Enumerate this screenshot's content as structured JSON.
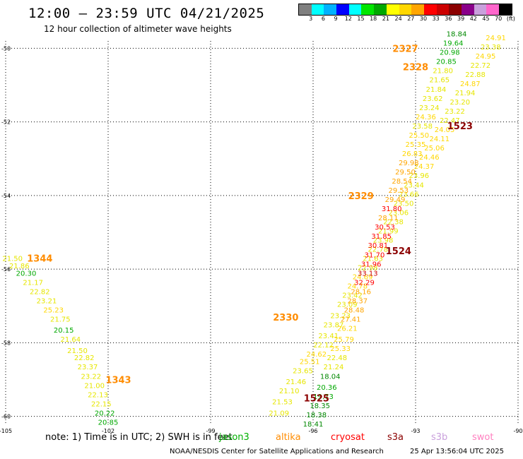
{
  "header": {
    "title": "12:00 – 23:59 UTC 04/21/2025",
    "subtitle": "12 hour collection of altimeter wave heights"
  },
  "colorbar": {
    "colors": [
      "#7f7f7f",
      "#00ffff",
      "#00b2ff",
      "#0000ff",
      "#00ffff",
      "#00e600",
      "#00a800",
      "#ffff00",
      "#ffd700",
      "#ffa500",
      "#ff0000",
      "#cc0000",
      "#8b0000",
      "#8a008a",
      "#c9a0dc",
      "#ff66cc",
      "#000000"
    ],
    "labels": [
      "3",
      "6",
      "9",
      "12",
      "15",
      "18",
      "21",
      "24",
      "27",
      "30",
      "33",
      "36",
      "39",
      "42",
      "45",
      "70",
      "(ft)"
    ]
  },
  "map": {
    "lon_ticks": [
      "-105",
      "-102",
      "-99",
      "-96",
      "-93",
      "-90"
    ],
    "lat_ticks": [
      "-50",
      "-52",
      "-54",
      "-56",
      "-58",
      "-60"
    ]
  },
  "chart_data": {
    "type": "scatter",
    "title": "12 hour collection of altimeter wave heights",
    "units": "ft",
    "xlim": [
      -105,
      -90
    ],
    "ylim": [
      -60.2,
      -49.8
    ],
    "tracks": [
      {
        "id": "1343",
        "points": [
          [
            -104.8,
            -55.7,
            21.5
          ],
          [
            -104.6,
            -55.9,
            21.86
          ],
          [
            -104.4,
            -56.1,
            20.3
          ],
          [
            -104.2,
            -56.35,
            21.17
          ],
          [
            -104.0,
            -56.6,
            22.82
          ],
          [
            -103.8,
            -56.85,
            23.21
          ],
          [
            -103.6,
            -57.1,
            25.23
          ],
          [
            -103.4,
            -57.35,
            21.75
          ],
          [
            -103.3,
            -57.65,
            20.15
          ],
          [
            -103.1,
            -57.9,
            21.64
          ],
          [
            -102.9,
            -58.2,
            21.5
          ],
          [
            -102.7,
            -58.4,
            22.82
          ],
          [
            -102.6,
            -58.65,
            23.37
          ],
          [
            -102.5,
            -58.9,
            23.22
          ],
          [
            -102.4,
            -59.15,
            21.0
          ],
          [
            -102.3,
            -59.4,
            22.13
          ],
          [
            -102.2,
            -59.65,
            22.15
          ],
          [
            -102.1,
            -59.9,
            20.22
          ],
          [
            -102.0,
            -60.15,
            20.85
          ]
        ]
      },
      {
        "id": "2330",
        "points": [
          [
            -97.0,
            -59.9,
            21.09
          ],
          [
            -96.9,
            -59.6,
            21.53
          ],
          [
            -96.7,
            -59.3,
            21.1
          ],
          [
            -96.5,
            -59.05,
            21.46
          ],
          [
            -96.3,
            -58.75,
            23.65
          ],
          [
            -96.1,
            -58.5,
            25.51
          ],
          [
            -95.9,
            -58.3,
            24.62
          ],
          [
            -95.7,
            -58.05,
            22.12
          ],
          [
            -95.55,
            -57.8,
            23.41
          ],
          [
            -95.4,
            -57.5,
            23.87
          ],
          [
            -95.2,
            -57.25,
            23.23
          ],
          [
            -95.0,
            -56.95,
            23.09
          ],
          [
            -94.85,
            -56.7,
            23.42
          ],
          [
            -94.7,
            -56.45,
            24.78
          ],
          [
            -94.55,
            -56.2,
            24.69
          ],
          [
            -94.4,
            -55.95,
            22.98
          ],
          [
            -94.25,
            -55.7,
            21.63
          ],
          [
            -94.1,
            -55.45,
            22.78
          ],
          [
            -93.95,
            -55.2,
            23.98
          ],
          [
            -93.8,
            -54.95,
            21.99
          ],
          [
            -93.65,
            -54.7,
            22.38
          ],
          [
            -93.5,
            -54.45,
            23.06
          ],
          [
            -93.35,
            -54.2,
            23.5
          ],
          [
            -93.2,
            -53.95,
            23.66
          ],
          [
            -93.05,
            -53.7,
            23.44
          ],
          [
            -92.9,
            -53.45,
            23.96
          ],
          [
            -92.75,
            -53.2,
            24.37
          ],
          [
            -92.6,
            -52.95,
            24.46
          ],
          [
            -92.45,
            -52.7,
            25.06
          ],
          [
            -92.3,
            -52.45,
            24.11
          ],
          [
            -92.15,
            -52.2,
            24.05
          ],
          [
            -92.0,
            -51.95,
            22.47
          ],
          [
            -91.85,
            -51.7,
            23.22
          ],
          [
            -91.7,
            -51.45,
            23.2
          ],
          [
            -91.55,
            -51.2,
            21.94
          ],
          [
            -91.4,
            -50.95,
            24.87
          ],
          [
            -91.25,
            -50.7,
            22.88
          ],
          [
            -91.1,
            -50.45,
            22.72
          ],
          [
            -90.95,
            -50.2,
            24.95
          ],
          [
            -90.8,
            -49.95,
            23.38
          ],
          [
            -90.65,
            -49.7,
            24.91
          ]
        ]
      },
      {
        "id": "1525",
        "points": [
          [
            -96.0,
            -60.2,
            18.41
          ],
          [
            -95.9,
            -59.95,
            18.38
          ],
          [
            -95.8,
            -59.7,
            18.35
          ],
          [
            -95.7,
            -59.45,
            19.73
          ],
          [
            -95.6,
            -59.2,
            20.36
          ],
          [
            -95.5,
            -58.9,
            18.04
          ],
          [
            -95.4,
            -58.65,
            21.24
          ],
          [
            -95.3,
            -58.4,
            22.48
          ],
          [
            -95.2,
            -58.15,
            25.33
          ],
          [
            -95.1,
            -57.9,
            25.79
          ],
          [
            -95.0,
            -57.6,
            26.21
          ],
          [
            -94.9,
            -57.35,
            27.41
          ],
          [
            -94.8,
            -57.1,
            28.48
          ],
          [
            -94.7,
            -56.85,
            28.37
          ],
          [
            -94.6,
            -56.6,
            28.16
          ],
          [
            -94.5,
            -56.35,
            32.29
          ],
          [
            -94.4,
            -56.1,
            33.13
          ],
          [
            -94.3,
            -55.85,
            31.96
          ],
          [
            -94.2,
            -55.6,
            31.7
          ],
          [
            -94.1,
            -55.35,
            30.81
          ],
          [
            -94.0,
            -55.1,
            31.85
          ],
          [
            -93.9,
            -54.85,
            30.53
          ],
          [
            -93.8,
            -54.6,
            28.11
          ],
          [
            -93.7,
            -54.35,
            31.8
          ],
          [
            -93.6,
            -54.1,
            29.49
          ],
          [
            -93.5,
            -53.85,
            29.53
          ],
          [
            -93.4,
            -53.6,
            28.54
          ],
          [
            -93.3,
            -53.35,
            29.5
          ],
          [
            -93.2,
            -53.1,
            29.98
          ],
          [
            -93.1,
            -52.85,
            26.83
          ],
          [
            -93.0,
            -52.6,
            25.35
          ],
          [
            -92.9,
            -52.35,
            25.5
          ],
          [
            -92.8,
            -52.1,
            23.58
          ],
          [
            -92.7,
            -51.85,
            24.36
          ],
          [
            -92.6,
            -51.6,
            23.24
          ],
          [
            -92.5,
            -51.35,
            23.62
          ],
          [
            -92.4,
            -51.1,
            21.84
          ],
          [
            -92.3,
            -50.85,
            21.65
          ],
          [
            -92.2,
            -50.6,
            21.8
          ],
          [
            -92.1,
            -50.35,
            20.85
          ],
          [
            -92.0,
            -50.1,
            20.98
          ],
          [
            -91.9,
            -49.85,
            19.64
          ],
          [
            -91.8,
            -49.6,
            18.84
          ]
        ]
      }
    ],
    "track_labels": [
      {
        "text": "1344",
        "lon": -104.0,
        "lat": -55.7,
        "color": "#ff8c00"
      },
      {
        "text": "1343",
        "lon": -101.7,
        "lat": -59.0,
        "color": "#ff8c00"
      },
      {
        "text": "2327",
        "lon": -93.3,
        "lat": -50.0,
        "color": "#ff8c00"
      },
      {
        "text": "2328",
        "lon": -93.0,
        "lat": -50.5,
        "color": "#ff8c00"
      },
      {
        "text": "2329",
        "lon": -94.6,
        "lat": -54.0,
        "color": "#ff8c00"
      },
      {
        "text": "2330",
        "lon": -96.8,
        "lat": -57.3,
        "color": "#ff8c00"
      },
      {
        "text": "1523",
        "lon": -91.7,
        "lat": -52.1,
        "color": "#8b0000"
      },
      {
        "text": "1524",
        "lon": -93.5,
        "lat": -55.5,
        "color": "#8b0000"
      },
      {
        "text": "1525",
        "lon": -95.9,
        "lat": -59.5,
        "color": "#8b0000"
      }
    ]
  },
  "footer": {
    "note": "note:  1) Time is in UTC;  2) SWH is in feet",
    "missions": [
      {
        "name": "jason3",
        "color": "#00b000"
      },
      {
        "name": "altika",
        "color": "#ff8c00"
      },
      {
        "name": "cryosat",
        "color": "#ff0000"
      },
      {
        "name": "s3a",
        "color": "#8b0000"
      },
      {
        "name": "s3b",
        "color": "#c9a0dc"
      },
      {
        "name": "swot",
        "color": "#ff80c0"
      }
    ],
    "credit": "NOAA/NESDIS Center for Satellite Applications and Research",
    "timestamp": "25 Apr 13:56:04 UTC 2025"
  }
}
